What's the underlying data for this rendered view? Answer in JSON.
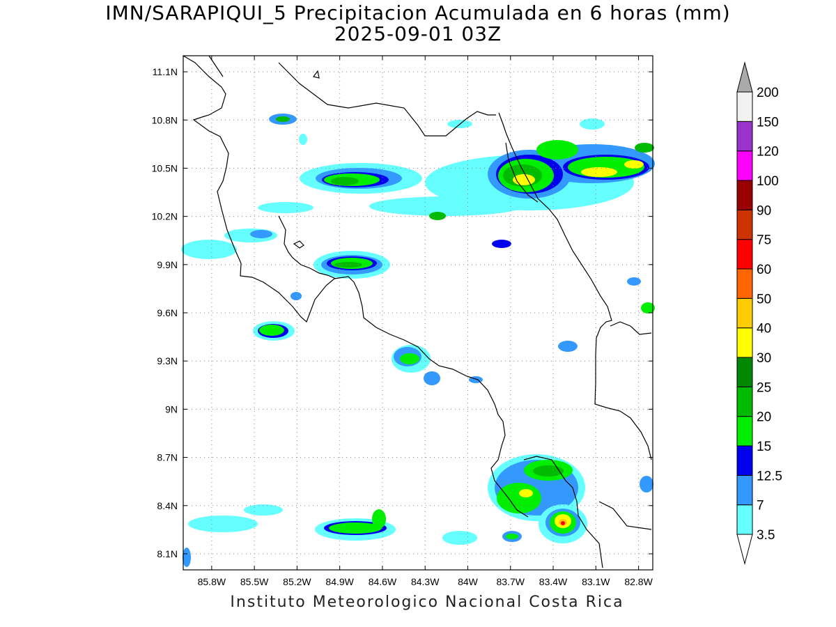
{
  "title": {
    "line1": "IMN/SARAPIQUI_5 Precipitacion Acumulada en 6 horas (mm)",
    "line2": "2025-09-01 03Z"
  },
  "footer": "Instituto Meteorologico Nacional Costa Rica",
  "map": {
    "lon_range": [
      -86.0,
      -82.7
    ],
    "lat_range": [
      8.0,
      11.2
    ],
    "lon_ticks": [
      "85.8W",
      "85.5W",
      "85.2W",
      "84.9W",
      "84.6W",
      "84.3W",
      "84W",
      "83.7W",
      "83.4W",
      "83.1W",
      "82.8W"
    ],
    "lat_ticks": [
      "11.1N",
      "10.8N",
      "10.5N",
      "10.2N",
      "9.9N",
      "9.6N",
      "9.3N",
      "9N",
      "8.7N",
      "8.4N",
      "8.1N"
    ],
    "grid": "dotted"
  },
  "colorbar": {
    "levels": [
      "3.5",
      "7",
      "12.5",
      "15",
      "20",
      "25",
      "30",
      "40",
      "50",
      "60",
      "75",
      "90",
      "100",
      "120",
      "150",
      "200"
    ],
    "colors": [
      "#ffffff",
      "#66ffff",
      "#3399ff",
      "#0000ee",
      "#00ee00",
      "#00bb00",
      "#008800",
      "#ffff00",
      "#ffcc00",
      "#ff6600",
      "#ff0000",
      "#cc3300",
      "#990000",
      "#ff00ff",
      "#9933cc",
      "#f2f2f2",
      "#aaaaaa"
    ]
  }
}
